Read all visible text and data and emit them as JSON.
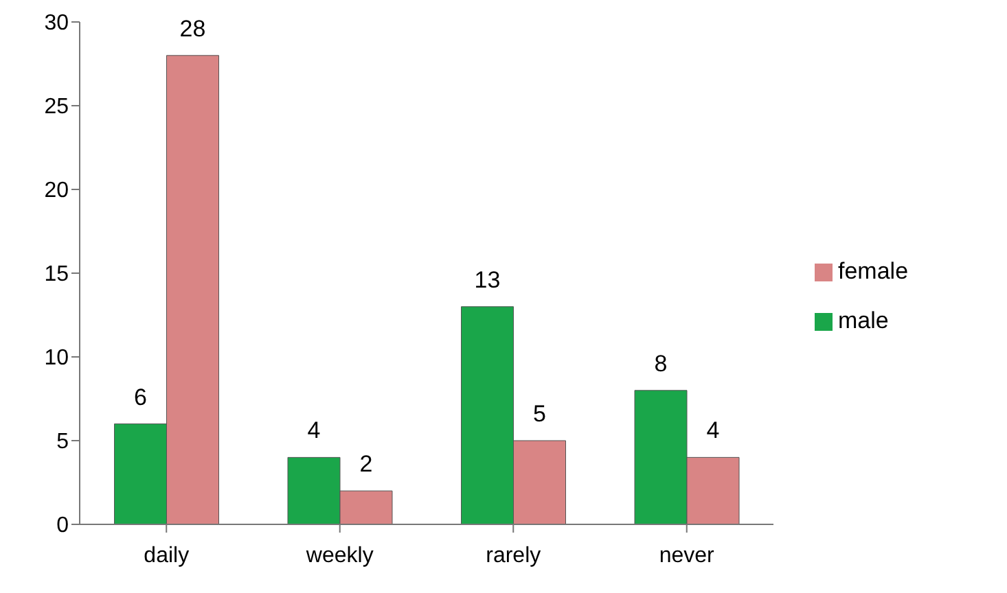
{
  "chart_data": {
    "type": "bar",
    "categories": [
      "daily",
      "weekly",
      "rarely",
      "never"
    ],
    "series": [
      {
        "name": "male",
        "color": "#1aa64a",
        "values": [
          6,
          4,
          13,
          8
        ]
      },
      {
        "name": "female",
        "color": "#d98585",
        "values": [
          28,
          2,
          5,
          4
        ]
      }
    ],
    "ylim": [
      0,
      30
    ],
    "yticks": [
      0,
      5,
      10,
      15,
      20,
      25,
      30
    ],
    "grid": false,
    "legend": "right",
    "data_labels": true
  }
}
